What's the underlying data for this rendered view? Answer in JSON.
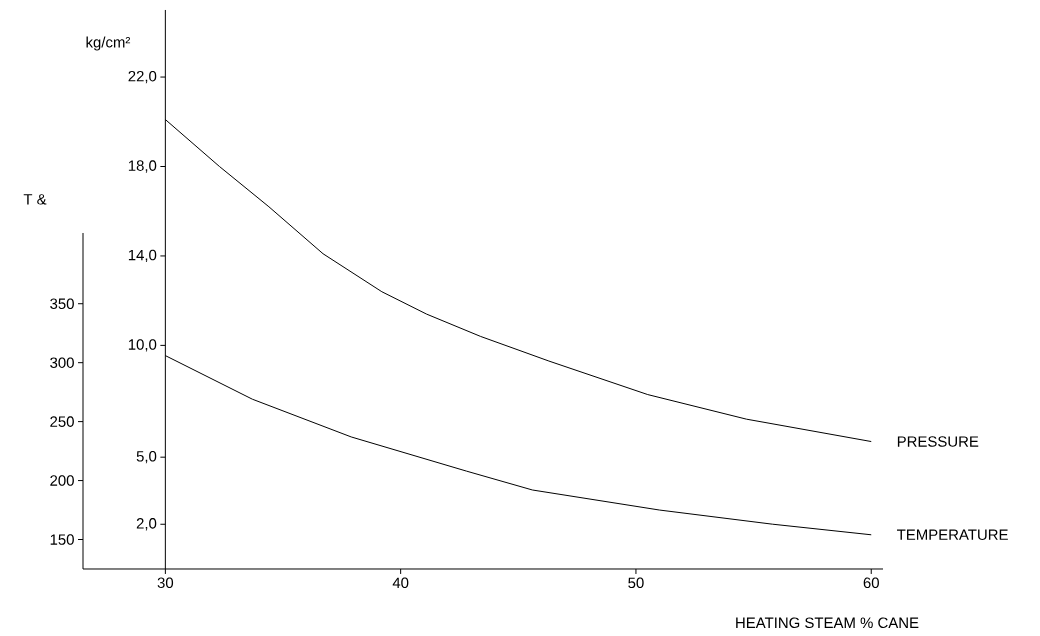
{
  "chart_data": {
    "type": "line",
    "xlabel": "HEATING STEAM % CANE",
    "ylabel": "T &",
    "y2label": "kg/cm²",
    "xlim": [
      26.5,
      60.5
    ],
    "xticks": [
      30,
      40,
      50,
      60
    ],
    "ylim": [
      125,
      410
    ],
    "yticks": [
      150,
      200,
      250,
      300,
      350
    ],
    "y2lim": [
      0,
      25
    ],
    "y2ticks": [
      {
        "value": 2,
        "label": "2,0"
      },
      {
        "value": 5,
        "label": "5,0"
      },
      {
        "value": 10,
        "label": "10,0"
      },
      {
        "value": 14,
        "label": "14,0"
      },
      {
        "value": 18,
        "label": "18,0"
      },
      {
        "value": 22,
        "label": "22,0"
      }
    ],
    "series": [
      {
        "name": "PRESSURE",
        "color": "#000000",
        "axis": "y2",
        "x": [
          30,
          32.3,
          34.4,
          36.7,
          39.2,
          41.1,
          43.4,
          46.3,
          50.5,
          54.7,
          60
        ],
        "values": [
          20.1,
          18.0,
          16.2,
          14.1,
          12.4,
          11.4,
          10.4,
          9.3,
          7.8,
          6.7,
          5.7
        ]
      },
      {
        "name": "TEMPERATURE",
        "color": "#000000",
        "x": [
          30,
          33.7,
          37.9,
          42.8,
          45.6,
          51,
          55.8,
          60
        ],
        "values": [
          306,
          269,
          237,
          208,
          192,
          175,
          163,
          154
        ]
      }
    ]
  }
}
